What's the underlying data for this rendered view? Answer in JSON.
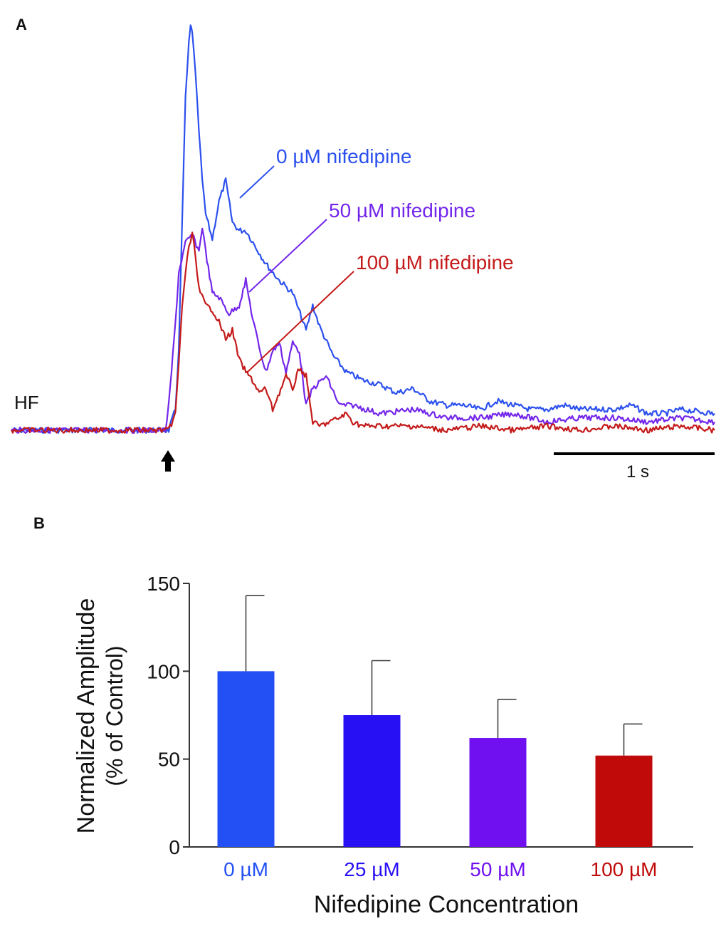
{
  "panels": [
    {
      "label": "A",
      "chart_data": {
        "type": "line",
        "title": "",
        "trace_label": "HF",
        "stimulus_marker": "arrow",
        "scale_bar": {
          "label": "1 s",
          "duration_s": 1.0
        },
        "x_units": "s",
        "x_range": [
          0,
          2.1
        ],
        "y_units": "relative amplitude",
        "y_range": [
          -0.03,
          1.0
        ],
        "stimulus_time": 0.47,
        "series": [
          {
            "name": "0 µM nifedipine",
            "color": "#2b50ee",
            "x": [
              0,
              0.47,
              0.49,
              0.5,
              0.51,
              0.52,
              0.53,
              0.535,
              0.54,
              0.55,
              0.56,
              0.57,
              0.58,
              0.6,
              0.62,
              0.64,
              0.66,
              0.68,
              0.7,
              0.73,
              0.76,
              0.8,
              0.84,
              0.88,
              0.9,
              0.92,
              0.96,
              1.0,
              1.05,
              1.1,
              1.15,
              1.2,
              1.25,
              1.3,
              1.35,
              1.4,
              1.45,
              1.5,
              1.55,
              1.6,
              1.65,
              1.7,
              1.75,
              1.8,
              1.85,
              1.9,
              1.95,
              2.0,
              2.1
            ],
            "y": [
              0.0,
              0.0,
              0.05,
              0.2,
              0.5,
              0.8,
              0.93,
              0.97,
              0.96,
              0.85,
              0.72,
              0.6,
              0.52,
              0.46,
              0.55,
              0.6,
              0.5,
              0.48,
              0.48,
              0.44,
              0.4,
              0.36,
              0.33,
              0.24,
              0.3,
              0.25,
              0.18,
              0.14,
              0.12,
              0.11,
              0.09,
              0.1,
              0.07,
              0.06,
              0.06,
              0.05,
              0.07,
              0.06,
              0.05,
              0.05,
              0.06,
              0.05,
              0.05,
              0.05,
              0.06,
              0.04,
              0.04,
              0.05,
              0.04
            ]
          },
          {
            "name": "50 µM nifedipine",
            "color": "#7326ea",
            "x": [
              0,
              0.46,
              0.47,
              0.49,
              0.5,
              0.52,
              0.54,
              0.56,
              0.57,
              0.58,
              0.6,
              0.62,
              0.65,
              0.68,
              0.7,
              0.72,
              0.74,
              0.76,
              0.78,
              0.8,
              0.82,
              0.84,
              0.86,
              0.88,
              0.9,
              0.94,
              0.98,
              1.02,
              1.06,
              1.1,
              1.2,
              1.3,
              1.4,
              1.5,
              1.6,
              1.7,
              1.8,
              1.9,
              2.0,
              2.1
            ],
            "y": [
              0.0,
              0.0,
              0.06,
              0.26,
              0.38,
              0.45,
              0.47,
              0.43,
              0.49,
              0.43,
              0.33,
              0.32,
              0.28,
              0.3,
              0.36,
              0.27,
              0.2,
              0.14,
              0.19,
              0.21,
              0.14,
              0.21,
              0.19,
              0.06,
              0.1,
              0.13,
              0.06,
              0.06,
              0.05,
              0.04,
              0.05,
              0.03,
              0.03,
              0.04,
              0.02,
              0.03,
              0.03,
              0.02,
              0.03,
              0.02
            ]
          },
          {
            "name": "100 µM nifedipine",
            "color": "#c41a1a",
            "x": [
              0,
              0.47,
              0.49,
              0.5,
              0.51,
              0.52,
              0.53,
              0.54,
              0.55,
              0.56,
              0.58,
              0.6,
              0.62,
              0.64,
              0.66,
              0.68,
              0.7,
              0.72,
              0.74,
              0.76,
              0.78,
              0.8,
              0.82,
              0.84,
              0.86,
              0.88,
              0.9,
              0.92,
              0.95,
              0.98,
              1.0,
              1.02,
              1.05,
              1.1,
              1.2,
              1.3,
              1.4,
              1.5,
              1.6,
              1.7,
              1.8,
              1.9,
              2.0,
              2.1
            ],
            "y": [
              0.0,
              0.0,
              0.04,
              0.16,
              0.3,
              0.38,
              0.44,
              0.47,
              0.42,
              0.34,
              0.3,
              0.29,
              0.26,
              0.22,
              0.24,
              0.17,
              0.14,
              0.12,
              0.09,
              0.1,
              0.05,
              0.09,
              0.13,
              0.1,
              0.15,
              0.13,
              0.02,
              0.01,
              0.02,
              0.03,
              0.04,
              0.02,
              0.01,
              0.01,
              0.01,
              0.0,
              0.01,
              0.0,
              0.01,
              0.0,
              0.01,
              0.0,
              0.01,
              0.0
            ]
          }
        ]
      }
    },
    {
      "label": "B",
      "chart_data": {
        "type": "bar",
        "title": "",
        "categories": [
          "0 µM",
          "25 µM",
          "50 µM",
          "100 µM"
        ],
        "values": [
          100,
          75,
          62,
          52
        ],
        "errors": [
          43,
          31,
          22,
          18
        ],
        "colors": [
          "#2350f5",
          "#2810f5",
          "#7010f0",
          "#c00a0a"
        ],
        "xlabel": "Nifedipine Concentration",
        "ylabel_line1": "Normalized Amplitude",
        "ylabel_line2": "(% of Control)",
        "ylim": [
          0,
          150
        ],
        "yticks": [
          "0",
          "50",
          "100",
          "150"
        ]
      }
    }
  ]
}
